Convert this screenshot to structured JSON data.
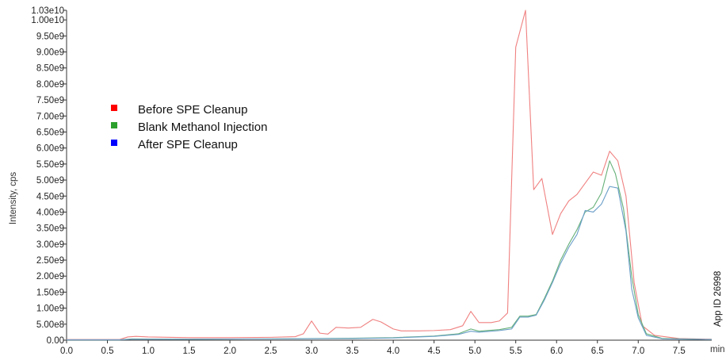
{
  "chart_data": {
    "type": "line",
    "ylabel": "Intensity, cps",
    "x_unit_label": "min",
    "xlim": [
      0,
      7.9
    ],
    "ylim": [
      0,
      10300000000
    ],
    "x_ticks": [
      0,
      0.5,
      1,
      1.5,
      2,
      2.5,
      3,
      3.5,
      4,
      4.5,
      5,
      5.5,
      6,
      6.5,
      7,
      7.5
    ],
    "x_tick_labels": [
      "0.0",
      "0.5",
      "1.0",
      "1.5",
      "2.0",
      "2.5",
      "3.0",
      "3.5",
      "4.0",
      "4.5",
      "5.0",
      "5.5",
      "6.0",
      "6.5",
      "7.0",
      "7.5"
    ],
    "y_ticks": [
      0,
      500000000,
      1000000000,
      1500000000,
      2000000000,
      2500000000,
      3000000000,
      3500000000,
      4000000000,
      4500000000,
      5000000000,
      5500000000,
      6000000000,
      6500000000,
      7000000000,
      7500000000,
      8000000000,
      8500000000,
      9000000000,
      9500000000,
      10000000000,
      10300000000
    ],
    "y_tick_labels": [
      "0.00",
      "5.00e8",
      "1.00e9",
      "1.50e9",
      "2.00e9",
      "2.50e9",
      "3.00e9",
      "3.50e9",
      "4.00e9",
      "4.50e9",
      "5.00e9",
      "5.50e9",
      "6.00e9",
      "6.50e9",
      "7.00e9",
      "7.50e9",
      "8.00e9",
      "8.50e9",
      "9.00e9",
      "9.50e9",
      "1.00e10",
      "1.03e10"
    ],
    "legend_position": "upper-left",
    "grid": false,
    "series": [
      {
        "name": "Before SPE Cleanup",
        "color": "#f08080",
        "legend_color": "#ff0000",
        "points": [
          [
            0,
            20000000.0
          ],
          [
            0.5,
            20000000.0
          ],
          [
            0.65,
            20000000.0
          ],
          [
            0.75,
            100000000.0
          ],
          [
            0.85,
            120000000.0
          ],
          [
            1.0,
            100000000.0
          ],
          [
            1.5,
            80000000.0
          ],
          [
            2.0,
            80000000.0
          ],
          [
            2.5,
            90000000.0
          ],
          [
            2.8,
            110000000.0
          ],
          [
            2.9,
            200000000.0
          ],
          [
            3.0,
            600000000.0
          ],
          [
            3.1,
            220000000.0
          ],
          [
            3.2,
            190000000.0
          ],
          [
            3.3,
            400000000.0
          ],
          [
            3.45,
            380000000.0
          ],
          [
            3.6,
            400000000.0
          ],
          [
            3.75,
            650000000.0
          ],
          [
            3.85,
            570000000.0
          ],
          [
            4.0,
            350000000.0
          ],
          [
            4.1,
            290000000.0
          ],
          [
            4.3,
            290000000.0
          ],
          [
            4.5,
            300000000.0
          ],
          [
            4.7,
            330000000.0
          ],
          [
            4.85,
            450000000.0
          ],
          [
            4.95,
            900000000.0
          ],
          [
            5.05,
            550000000.0
          ],
          [
            5.2,
            550000000.0
          ],
          [
            5.3,
            600000000.0
          ],
          [
            5.4,
            850000000.0
          ],
          [
            5.5,
            9150000000.0
          ],
          [
            5.62,
            10300000000.0
          ],
          [
            5.72,
            4700000000.0
          ],
          [
            5.82,
            5050000000.0
          ],
          [
            5.95,
            3300000000.0
          ],
          [
            6.05,
            3950000000.0
          ],
          [
            6.15,
            4350000000.0
          ],
          [
            6.25,
            4550000000.0
          ],
          [
            6.35,
            4900000000.0
          ],
          [
            6.45,
            5250000000.0
          ],
          [
            6.55,
            5150000000.0
          ],
          [
            6.65,
            5900000000.0
          ],
          [
            6.75,
            5600000000.0
          ],
          [
            6.85,
            4500000000.0
          ],
          [
            6.95,
            1800000000.0
          ],
          [
            7.05,
            450000000.0
          ],
          [
            7.2,
            150000000.0
          ],
          [
            7.5,
            50000000.0
          ],
          [
            7.9,
            30000000.0
          ]
        ]
      },
      {
        "name": "Blank Methanol Injection",
        "color": "#66b078",
        "legend_color": "#2ca02c",
        "points": [
          [
            0,
            10000000.0
          ],
          [
            0.65,
            10000000.0
          ],
          [
            0.8,
            40000000.0
          ],
          [
            1.5,
            30000000.0
          ],
          [
            2.5,
            40000000.0
          ],
          [
            3.5,
            60000000.0
          ],
          [
            4.0,
            80000000.0
          ],
          [
            4.5,
            130000000.0
          ],
          [
            4.8,
            200000000.0
          ],
          [
            4.95,
            350000000.0
          ],
          [
            5.05,
            280000000.0
          ],
          [
            5.3,
            330000000.0
          ],
          [
            5.45,
            400000000.0
          ],
          [
            5.55,
            750000000.0
          ],
          [
            5.65,
            750000000.0
          ],
          [
            5.75,
            800000000.0
          ],
          [
            5.85,
            1300000000.0
          ],
          [
            5.95,
            1850000000.0
          ],
          [
            6.05,
            2500000000.0
          ],
          [
            6.15,
            3000000000.0
          ],
          [
            6.25,
            3450000000.0
          ],
          [
            6.35,
            4000000000.0
          ],
          [
            6.45,
            4150000000.0
          ],
          [
            6.55,
            4600000000.0
          ],
          [
            6.65,
            5600000000.0
          ],
          [
            6.72,
            5200000000.0
          ],
          [
            6.82,
            4100000000.0
          ],
          [
            6.92,
            2000000000.0
          ],
          [
            7.0,
            800000000.0
          ],
          [
            7.1,
            200000000.0
          ],
          [
            7.3,
            50000000.0
          ],
          [
            7.9,
            20000000.0
          ]
        ]
      },
      {
        "name": "After SPE Cleanup",
        "color": "#6a9ec8",
        "legend_color": "#0000ff",
        "points": [
          [
            0,
            10000000.0
          ],
          [
            0.65,
            10000000.0
          ],
          [
            0.8,
            30000000.0
          ],
          [
            1.5,
            30000000.0
          ],
          [
            2.5,
            40000000.0
          ],
          [
            3.5,
            50000000.0
          ],
          [
            4.0,
            70000000.0
          ],
          [
            4.5,
            120000000.0
          ],
          [
            4.8,
            180000000.0
          ],
          [
            4.95,
            280000000.0
          ],
          [
            5.05,
            250000000.0
          ],
          [
            5.3,
            300000000.0
          ],
          [
            5.45,
            350000000.0
          ],
          [
            5.55,
            720000000.0
          ],
          [
            5.65,
            720000000.0
          ],
          [
            5.75,
            780000000.0
          ],
          [
            5.85,
            1250000000.0
          ],
          [
            5.95,
            1800000000.0
          ],
          [
            6.05,
            2400000000.0
          ],
          [
            6.15,
            2900000000.0
          ],
          [
            6.25,
            3300000000.0
          ],
          [
            6.35,
            4050000000.0
          ],
          [
            6.45,
            4000000000.0
          ],
          [
            6.55,
            4250000000.0
          ],
          [
            6.65,
            4800000000.0
          ],
          [
            6.75,
            4750000000.0
          ],
          [
            6.85,
            3400000000.0
          ],
          [
            6.92,
            1600000000.0
          ],
          [
            7.0,
            700000000.0
          ],
          [
            7.1,
            150000000.0
          ],
          [
            7.3,
            40000000.0
          ],
          [
            7.9,
            20000000.0
          ]
        ]
      }
    ],
    "annotation": "App ID 26998"
  }
}
